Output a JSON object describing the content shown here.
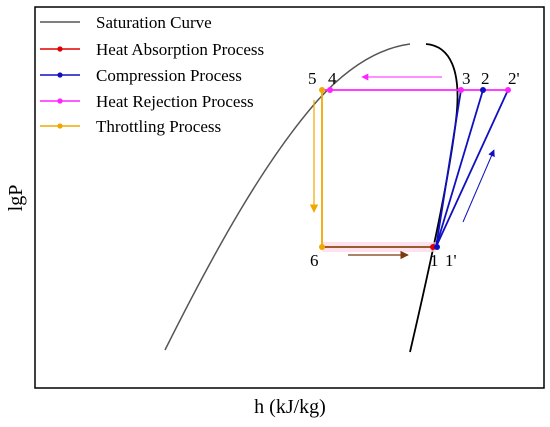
{
  "axes": {
    "xlabel": "h (kJ/kg)",
    "ylabel": "lgP"
  },
  "legend": {
    "placement": "top-left",
    "items": [
      {
        "label": "Saturation Curve",
        "color": "#555555"
      },
      {
        "label": "Heat Absorption Process",
        "color": "#e00000"
      },
      {
        "label": "Compression Process",
        "color": "#1010c0"
      },
      {
        "label": "Heat Rejection Process",
        "color": "#ff22ff"
      },
      {
        "label": "Throttling Process",
        "color": "#f0a800"
      }
    ]
  },
  "points": {
    "p5": "5",
    "p4": "4",
    "p3": "3",
    "p2": "2",
    "p2prime": "2'",
    "p6": "6",
    "p1": "1",
    "p1prime": "1'"
  },
  "colors": {
    "saturation_liquid": "#555555",
    "saturation_vapor": "#000000",
    "compression": "#1010c0",
    "heat_rejection": "#ff22ff",
    "throttling": "#f0a800",
    "absorption_line": "#8a4a10",
    "absorption_arrow": "#7a3a10"
  }
}
